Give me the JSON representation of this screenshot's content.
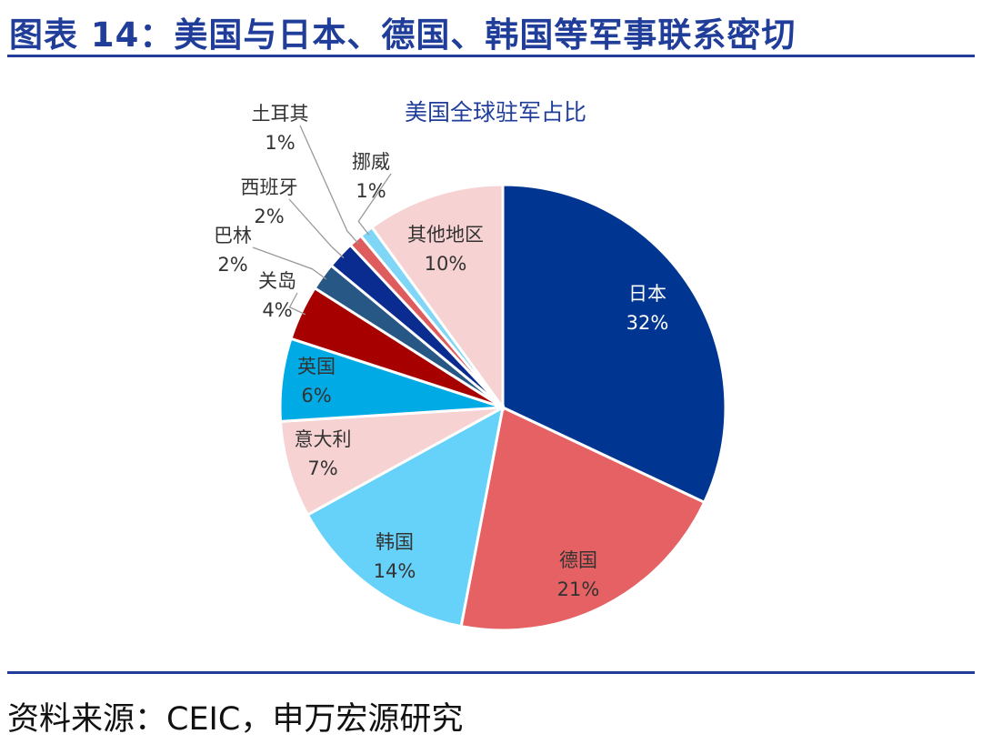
{
  "figure_title": "图表 14：美国与日本、德国、韩国等军事联系密切",
  "source": "资料来源：CEIC，申万宏源研究",
  "chart_data": {
    "type": "pie",
    "title": "美国全球驻军占比",
    "slices": [
      {
        "name": "日本",
        "value": 32,
        "label": "32%",
        "color": "#003591"
      },
      {
        "name": "德国",
        "value": 21,
        "label": "21%",
        "color": "#e56163"
      },
      {
        "name": "韩国",
        "value": 14,
        "label": "14%",
        "color": "#66d1f9"
      },
      {
        "name": "意大利",
        "value": 7,
        "label": "7%",
        "color": "#f6d2d2"
      },
      {
        "name": "英国",
        "value": 6,
        "label": "6%",
        "color": "#00aae5"
      },
      {
        "name": "关岛",
        "value": 4,
        "label": "4%",
        "color": "#a60000"
      },
      {
        "name": "巴林",
        "value": 2,
        "label": "2%",
        "color": "#275785"
      },
      {
        "name": "西班牙",
        "value": 2,
        "label": "2%",
        "color": "#0a2b8f"
      },
      {
        "name": "土耳其",
        "value": 1,
        "label": "1%",
        "color": "#de5b5e"
      },
      {
        "name": "挪威",
        "value": 1,
        "label": "1%",
        "color": "#7fd6f6"
      },
      {
        "name": "其他地区",
        "value": 10,
        "label": "10%",
        "color": "#f6d2d2"
      }
    ]
  }
}
